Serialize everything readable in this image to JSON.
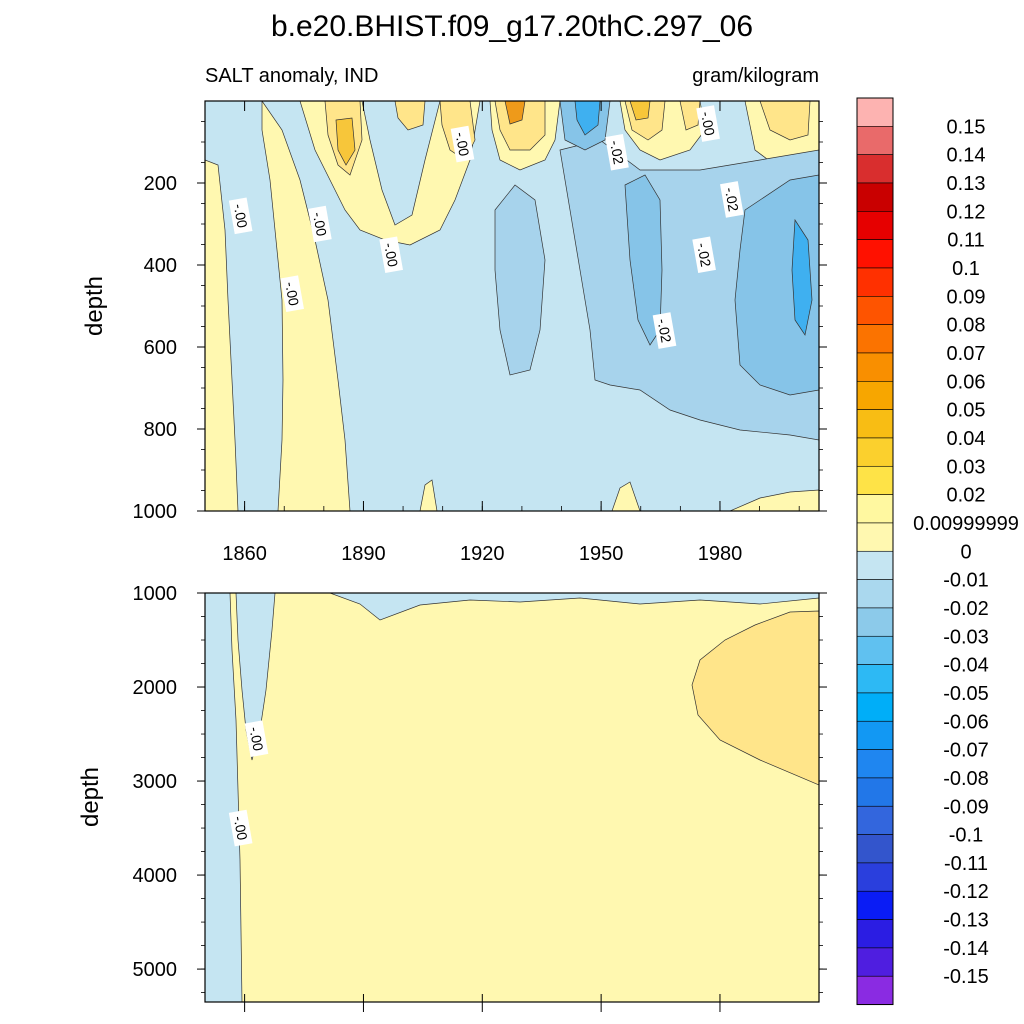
{
  "title": "b.e20.BHIST.f09_g17.20thC.297_06",
  "colors": {
    "background": "#ffffff",
    "zero_pos": "#fff8b0",
    "weak_pos": "#ffe58a",
    "mid_pos": "#f7c63a",
    "strong_pos": "#ee9a1a",
    "zero_neg": "#c5e5f2",
    "weak_neg": "#a7d3ec",
    "mid_neg": "#86c4e8",
    "strong_neg": "#3fb0f0"
  },
  "chart_data": [
    {
      "type": "heatmap",
      "panel": "upper",
      "variable": "SALT anomaly, IND",
      "units": "gram/kilogram",
      "ylabel": "depth",
      "xlabel": "",
      "x_range": [
        1850,
        2005
      ],
      "y_range": [
        0,
        1000
      ],
      "y_reversed": true,
      "x_ticks": [
        "1860",
        "1890",
        "1920",
        "1950",
        "1980"
      ],
      "y_ticks": [
        "200",
        "400",
        "600",
        "800",
        "1000"
      ],
      "contour_labels": [
        {
          "text": "-.00",
          "year": 1859,
          "depth": 280
        },
        {
          "text": "-.00",
          "year": 1879,
          "depth": 300
        },
        {
          "text": "-.00",
          "year": 1872,
          "depth": 470
        },
        {
          "text": "-.00",
          "year": 1897,
          "depth": 375
        },
        {
          "text": "-.00",
          "year": 1915,
          "depth": 105
        },
        {
          "text": "-.00",
          "year": 1977,
          "depth": 55
        },
        {
          "text": "-.02",
          "year": 1954,
          "depth": 125
        },
        {
          "text": "-.02",
          "year": 1983,
          "depth": 240
        },
        {
          "text": "-.02",
          "year": 1976,
          "depth": 375
        },
        {
          "text": "-.02",
          "year": 1966,
          "depth": 560
        }
      ]
    },
    {
      "type": "heatmap",
      "panel": "lower",
      "variable": "SALT anomaly, IND",
      "units": "gram/kilogram",
      "ylabel": "depth",
      "xlabel": "",
      "x_range": [
        1850,
        2005
      ],
      "y_range": [
        1000,
        5350
      ],
      "y_reversed": true,
      "y_ticks": [
        "1000",
        "2000",
        "3000",
        "4000",
        "5000"
      ],
      "contour_labels": [
        {
          "text": "-.00",
          "year": 1863,
          "depth": 2550
        },
        {
          "text": "-.00",
          "year": 1859,
          "depth": 3500
        }
      ]
    }
  ],
  "colorbar": {
    "labels": [
      "0.15",
      "0.14",
      "0.13",
      "0.12",
      "0.11",
      "0.1",
      "0.09",
      "0.08",
      "0.07",
      "0.06",
      "0.05",
      "0.04",
      "0.03",
      "0.02",
      "0.00999999",
      "0",
      "-0.01",
      "-0.02",
      "-0.03",
      "-0.04",
      "-0.05",
      "-0.06",
      "-0.07",
      "-0.08",
      "-0.09",
      "-0.1",
      "-0.11",
      "-0.12",
      "-0.13",
      "-0.14",
      "-0.15"
    ],
    "colors": [
      "#fdb3b1",
      "#e96a6a",
      "#d92e2e",
      "#c90000",
      "#e60000",
      "#ff1100",
      "#ff3000",
      "#fe5400",
      "#fb7300",
      "#f98f00",
      "#f7a600",
      "#f8bd14",
      "#fbd02d",
      "#fee347",
      "#fff8a0",
      "#fff8b0",
      "#c5e5f2",
      "#aad8ee",
      "#8ccaea",
      "#60c1f0",
      "#2db9f4",
      "#00aef8",
      "#1298f3",
      "#1f86f0",
      "#2277e8",
      "#3366dd",
      "#3355cc",
      "#2a3fdd",
      "#0a1cf5",
      "#2b1de3",
      "#4f1ee0",
      "#8a2be2"
    ]
  }
}
